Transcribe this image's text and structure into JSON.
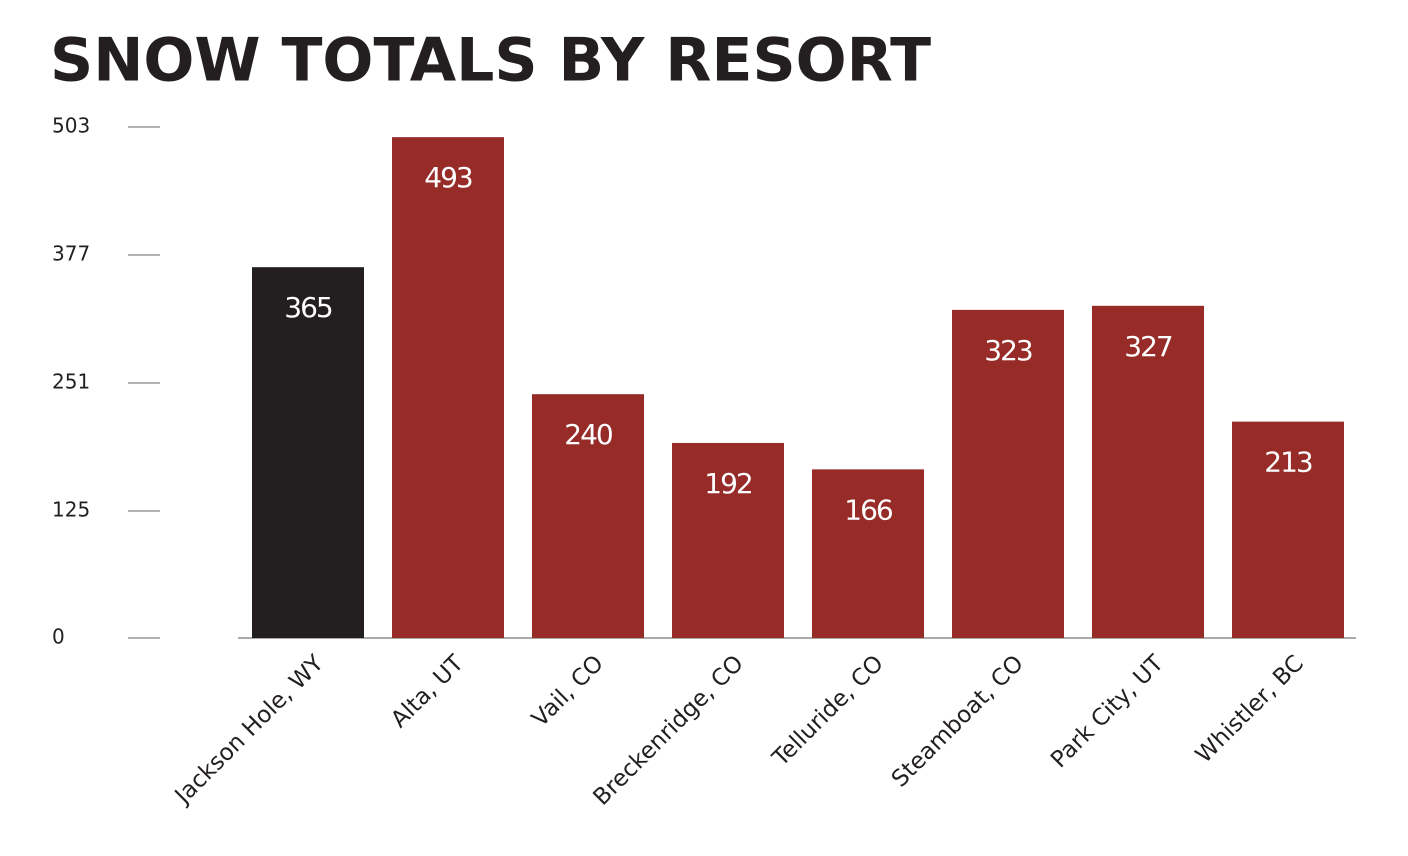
{
  "chart_data": {
    "type": "bar",
    "title": "SNOW TOTALS BY RESORT",
    "categories": [
      "Jackson Hole, WY",
      "Alta, UT",
      "Vail, CO",
      "Breckenridge, CO",
      "Telluride, CO",
      "Steamboat, CO",
      "Park City, UT",
      "Whistler, BC"
    ],
    "values": [
      365,
      493,
      240,
      192,
      166,
      323,
      327,
      213
    ],
    "colors": [
      "#231f20",
      "#962b28",
      "#962b28",
      "#962b28",
      "#962b28",
      "#962b28",
      "#962b28",
      "#962b28"
    ],
    "ylim": [
      0,
      503
    ],
    "yticks": [
      0,
      125,
      251,
      377,
      503
    ],
    "grid": false
  }
}
